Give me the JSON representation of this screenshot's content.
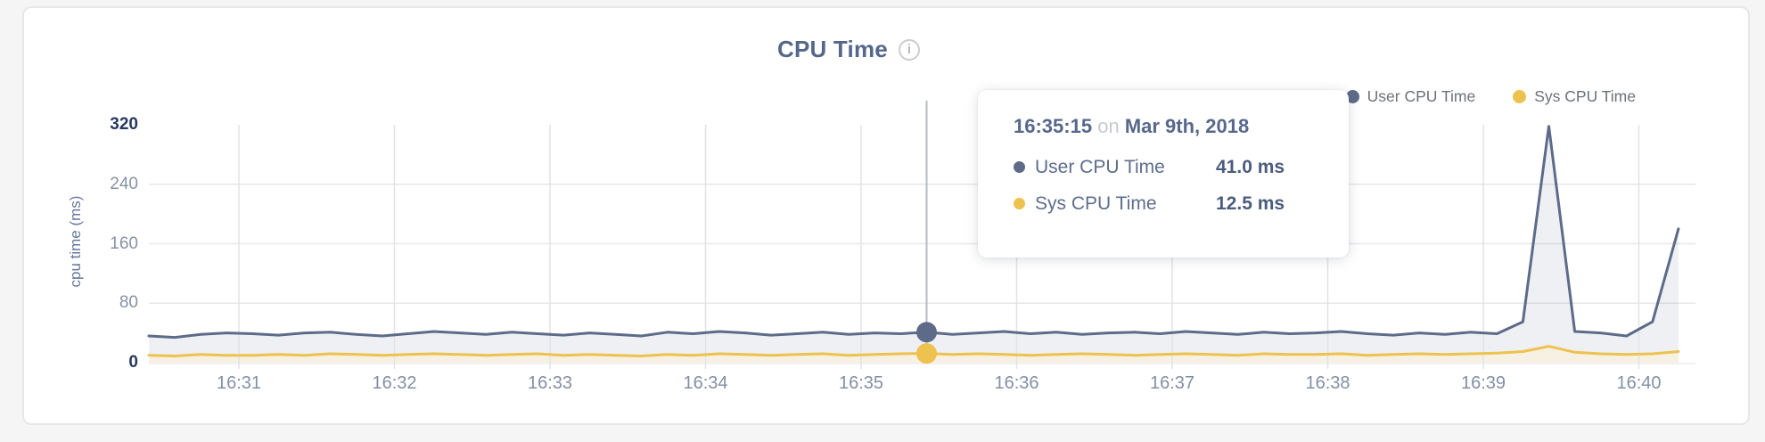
{
  "header": {
    "title": "CPU Time",
    "info_icon": "i"
  },
  "legend": {
    "items": [
      {
        "label": "User CPU Time",
        "color": "#5d6b89"
      },
      {
        "label": "Sys CPU Time",
        "color": "#eec24f"
      }
    ]
  },
  "tooltip": {
    "time": "16:35:15",
    "connector": "on",
    "date": "Mar 9th, 2018",
    "rows": [
      {
        "label": "User CPU Time",
        "value": "41.0 ms",
        "color": "#5d6b89"
      },
      {
        "label": "Sys CPU Time",
        "value": "12.5 ms",
        "color": "#eec24f"
      }
    ]
  },
  "chart_data": {
    "type": "area",
    "title": "CPU Time",
    "ylabel": "cpu time (ms)",
    "ylim": [
      0,
      320
    ],
    "y_ticks": [
      0,
      80,
      160,
      240,
      320
    ],
    "x_ticks": [
      "16:31",
      "16:32",
      "16:33",
      "16:34",
      "16:35",
      "16:36",
      "16:37",
      "16:38",
      "16:39",
      "16:40"
    ],
    "grid": true,
    "legend_position": "top-right",
    "highlight_index": 30,
    "series": [
      {
        "name": "User CPU Time",
        "color": "#5d6b89",
        "fill": "rgba(93,107,137,0.10)",
        "values": [
          36,
          34,
          38,
          40,
          39,
          37,
          40,
          41,
          38,
          36,
          39,
          42,
          40,
          38,
          41,
          39,
          37,
          40,
          38,
          36,
          41,
          39,
          42,
          40,
          37,
          39,
          41,
          38,
          40,
          39,
          41,
          38,
          40,
          42,
          39,
          41,
          38,
          40,
          41,
          39,
          42,
          40,
          38,
          41,
          39,
          40,
          42,
          39,
          37,
          40,
          38,
          41,
          39,
          55,
          318,
          42,
          40,
          36,
          55,
          180
        ]
      },
      {
        "name": "Sys CPU Time",
        "color": "#eec24f",
        "fill": "#f6f1e2",
        "values": [
          10,
          9,
          11,
          10,
          10,
          11,
          10,
          12,
          11,
          10,
          11,
          12,
          11,
          10,
          11,
          12,
          10,
          11,
          10,
          9,
          11,
          10,
          12,
          11,
          10,
          11,
          12,
          10,
          11,
          12,
          12.5,
          11,
          12,
          11,
          10,
          11,
          12,
          11,
          10,
          11,
          12,
          11,
          10,
          12,
          11,
          11,
          12,
          10,
          11,
          12,
          11,
          12,
          13,
          15,
          22,
          14,
          12,
          11,
          12,
          15
        ]
      }
    ]
  }
}
